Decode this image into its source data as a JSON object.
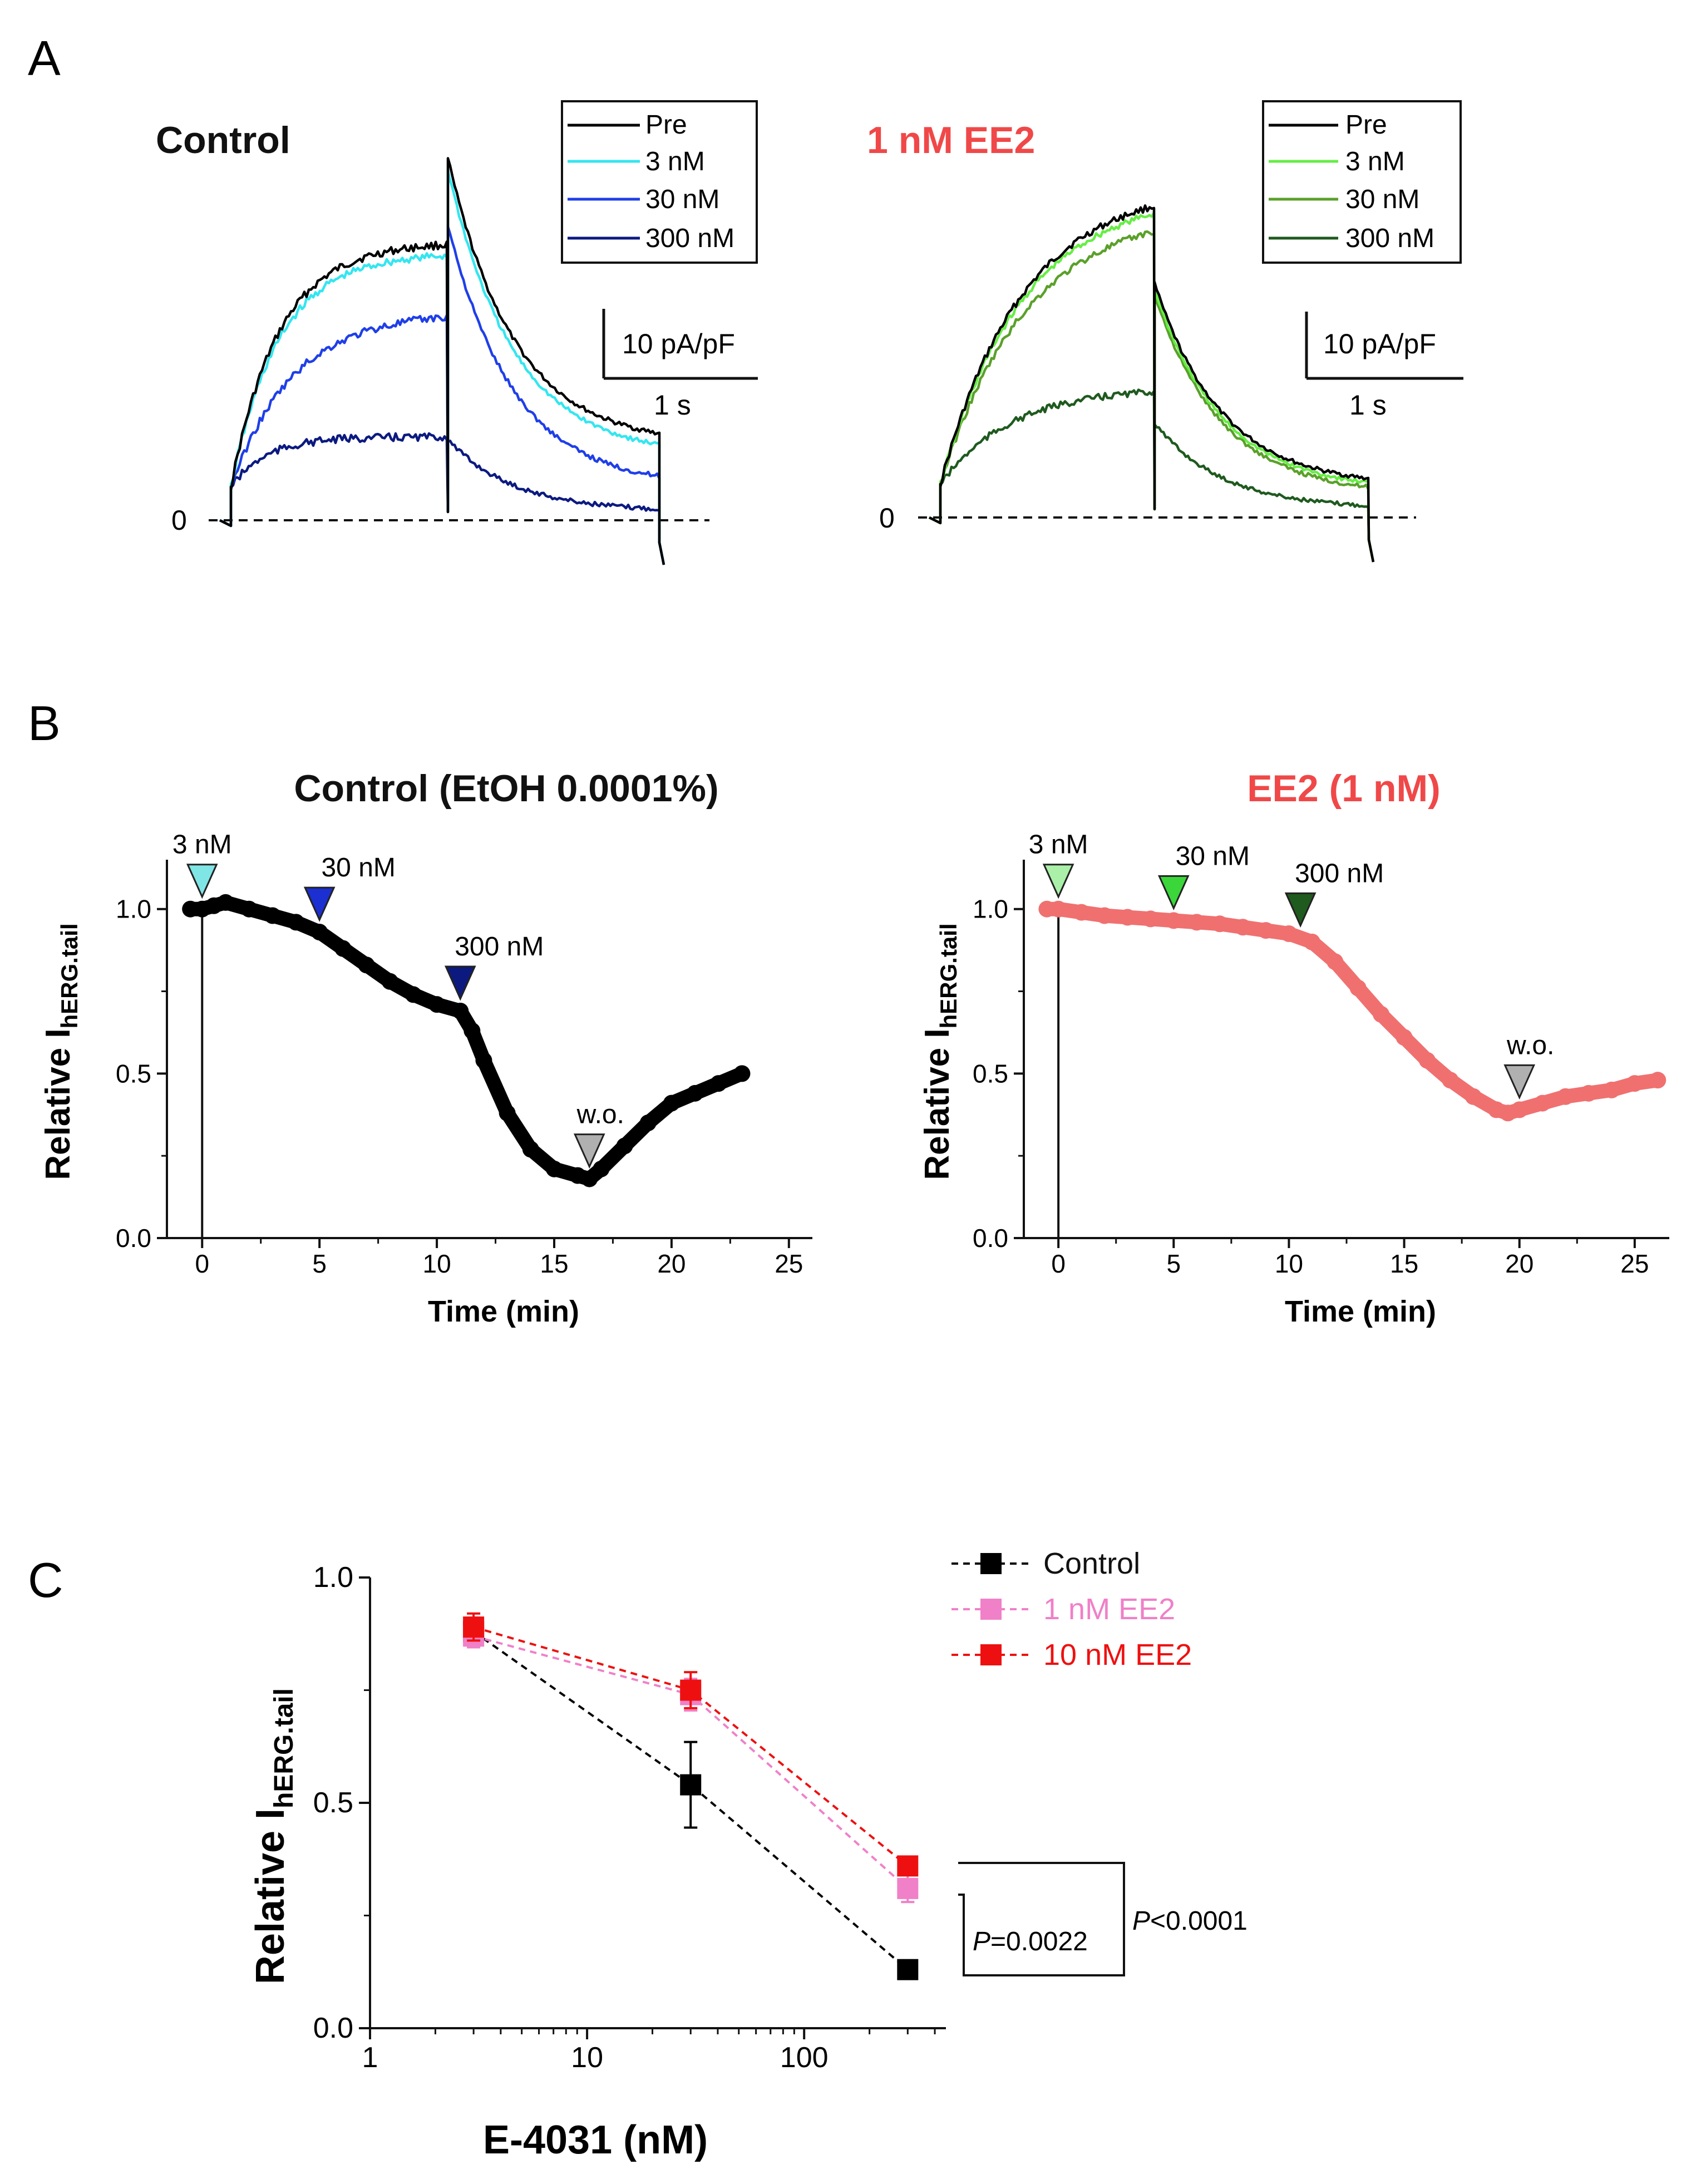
{
  "panels": {
    "A": {
      "label": "A",
      "left": {
        "title": "Control",
        "legend": [
          "Pre",
          "3 nM",
          "30 nM",
          "300 nM"
        ],
        "colors": [
          "#000000",
          "#33e6f0",
          "#1f3fe8",
          "#0c1a80"
        ],
        "scale_current": "10 pA/pF",
        "scale_time": "1 s",
        "zero_label": "0"
      },
      "right": {
        "title": "1 nM EE2",
        "legend": [
          "Pre",
          "3 nM",
          "30 nM",
          "300 nM"
        ],
        "colors": [
          "#000000",
          "#66ee44",
          "#5aa02a",
          "#1f5a1f"
        ],
        "scale_current": "10 pA/pF",
        "scale_time": "1 s",
        "zero_label": "0"
      }
    },
    "B": {
      "label": "B",
      "left": {
        "title": "Control (EtOH 0.0001%)",
        "ylabel_main": "Relative I",
        "ylabel_sub": "hERG.tail",
        "xlabel": "Time (min)",
        "xticks": [
          "0",
          "5",
          "10",
          "15",
          "20",
          "25"
        ],
        "yticks": [
          "0.0",
          "0.5",
          "1.0"
        ],
        "markers": [
          {
            "label": "3 nM",
            "t": 0,
            "color": "#7fe5e5"
          },
          {
            "label": "30 nM",
            "t": 5,
            "color": "#1c2fd0"
          },
          {
            "label": "300 nM",
            "t": 11,
            "color": "#0c1a80"
          },
          {
            "label": "w.o.",
            "t": 16.5,
            "color": "#b0b0b0"
          }
        ],
        "color": "#000000",
        "series": {
          "t": [
            -0.5,
            0,
            0.5,
            1,
            2,
            3,
            4,
            5,
            6,
            7,
            8,
            9,
            10,
            11,
            11.5,
            12,
            13,
            14,
            15,
            16,
            16.5,
            17,
            18,
            19,
            20,
            21,
            22,
            23
          ],
          "y": [
            1.0,
            1.0,
            1.01,
            1.02,
            1.0,
            0.98,
            0.96,
            0.93,
            0.88,
            0.83,
            0.78,
            0.74,
            0.71,
            0.69,
            0.63,
            0.54,
            0.38,
            0.27,
            0.21,
            0.19,
            0.18,
            0.21,
            0.28,
            0.35,
            0.41,
            0.44,
            0.47,
            0.5
          ]
        }
      },
      "right": {
        "title": "EE2 (1 nM)",
        "ylabel_main": "Relative I",
        "ylabel_sub": "hERG.tail",
        "xlabel": "Time (min)",
        "xticks": [
          "0",
          "5",
          "10",
          "15",
          "20",
          "25"
        ],
        "yticks": [
          "0.0",
          "0.5",
          "1.0"
        ],
        "markers": [
          {
            "label": "3 nM",
            "t": 0,
            "color": "#aaf0a8"
          },
          {
            "label": "30 nM",
            "t": 5,
            "color": "#3ad63a"
          },
          {
            "label": "300 nM",
            "t": 10.5,
            "color": "#1f5a1f"
          },
          {
            "label": "w.o.",
            "t": 20,
            "color": "#b0b0b0"
          }
        ],
        "color": "#f07070",
        "series": {
          "t": [
            -0.5,
            0,
            1,
            2,
            3,
            4,
            5,
            6,
            7,
            8,
            9,
            10,
            11,
            12,
            13,
            14,
            15,
            16,
            17,
            18,
            19,
            19.5,
            20,
            21,
            22,
            23,
            24,
            25,
            26
          ],
          "y": [
            1.0,
            1.0,
            0.99,
            0.98,
            0.975,
            0.97,
            0.965,
            0.96,
            0.955,
            0.945,
            0.935,
            0.925,
            0.9,
            0.84,
            0.76,
            0.68,
            0.61,
            0.54,
            0.48,
            0.43,
            0.39,
            0.38,
            0.39,
            0.41,
            0.43,
            0.44,
            0.45,
            0.47,
            0.48
          ]
        }
      }
    },
    "C": {
      "label": "C",
      "ylabel_main": "Relative I",
      "ylabel_sub": "hERG.tail",
      "xlabel": "E-4031 (nM)",
      "xticks": [
        "1",
        "10",
        "100"
      ],
      "yticks": [
        "0.0",
        "0.5",
        "1.0"
      ],
      "stat_inner": "=0.0022",
      "stat_outer": "<0.0001",
      "stat_p": "P"
    }
  },
  "chart_data": [
    {
      "type": "line",
      "title": "Control (EtOH 0.0001%)",
      "xlabel": "Time (min)",
      "ylabel": "Relative IhERG.tail",
      "xlim": [
        -1.5,
        26
      ],
      "ylim": [
        0,
        1.15
      ],
      "series": [
        {
          "name": "Control",
          "x": [
            -0.5,
            0,
            0.5,
            1,
            2,
            3,
            4,
            5,
            6,
            7,
            8,
            9,
            10,
            11,
            11.5,
            12,
            13,
            14,
            15,
            16,
            16.5,
            17,
            18,
            19,
            20,
            21,
            22,
            23
          ],
          "y": [
            1.0,
            1.0,
            1.01,
            1.02,
            1.0,
            0.98,
            0.96,
            0.93,
            0.88,
            0.83,
            0.78,
            0.74,
            0.71,
            0.69,
            0.63,
            0.54,
            0.38,
            0.27,
            0.21,
            0.19,
            0.18,
            0.21,
            0.28,
            0.35,
            0.41,
            0.44,
            0.47,
            0.5
          ]
        }
      ],
      "annotations": [
        "3 nM",
        "30 nM",
        "300 nM",
        "w.o."
      ]
    },
    {
      "type": "line",
      "title": "EE2 (1 nM)",
      "xlabel": "Time (min)",
      "ylabel": "Relative IhERG.tail",
      "xlim": [
        -1.5,
        26.5
      ],
      "ylim": [
        0,
        1.15
      ],
      "series": [
        {
          "name": "EE2 1 nM",
          "x": [
            -0.5,
            0,
            1,
            2,
            3,
            4,
            5,
            6,
            7,
            8,
            9,
            10,
            11,
            12,
            13,
            14,
            15,
            16,
            17,
            18,
            19,
            19.5,
            20,
            21,
            22,
            23,
            24,
            25,
            26
          ],
          "y": [
            1.0,
            1.0,
            0.99,
            0.98,
            0.975,
            0.97,
            0.965,
            0.96,
            0.955,
            0.945,
            0.935,
            0.925,
            0.9,
            0.84,
            0.76,
            0.68,
            0.61,
            0.54,
            0.48,
            0.43,
            0.39,
            0.38,
            0.39,
            0.41,
            0.43,
            0.44,
            0.45,
            0.47,
            0.48
          ]
        }
      ],
      "annotations": [
        "3 nM",
        "30 nM",
        "300 nM",
        "w.o."
      ]
    },
    {
      "type": "scatter",
      "title": "",
      "xlabel": "E-4031 (nM)",
      "ylabel": "Relative IhERG.tail",
      "xscale": "log",
      "xlim": [
        1,
        450
      ],
      "ylim": [
        0,
        1.0
      ],
      "x": [
        3,
        30,
        300
      ],
      "series": [
        {
          "name": "Control",
          "color": "#000000",
          "values": [
            0.88,
            0.54,
            0.13
          ],
          "errors": [
            0.02,
            0.095,
            0.01
          ]
        },
        {
          "name": "1 nM EE2",
          "color": "#f080c8",
          "values": [
            0.87,
            0.74,
            0.31
          ],
          "errors": [
            0.025,
            0.035,
            0.03
          ]
        },
        {
          "name": "10 nM EE2",
          "color": "#ee1010",
          "values": [
            0.89,
            0.75,
            0.36
          ],
          "errors": [
            0.03,
            0.04,
            0.02
          ]
        }
      ],
      "legend_position": "top-right",
      "annotations": [
        "P=0.0022",
        "P<0.0001"
      ]
    }
  ]
}
